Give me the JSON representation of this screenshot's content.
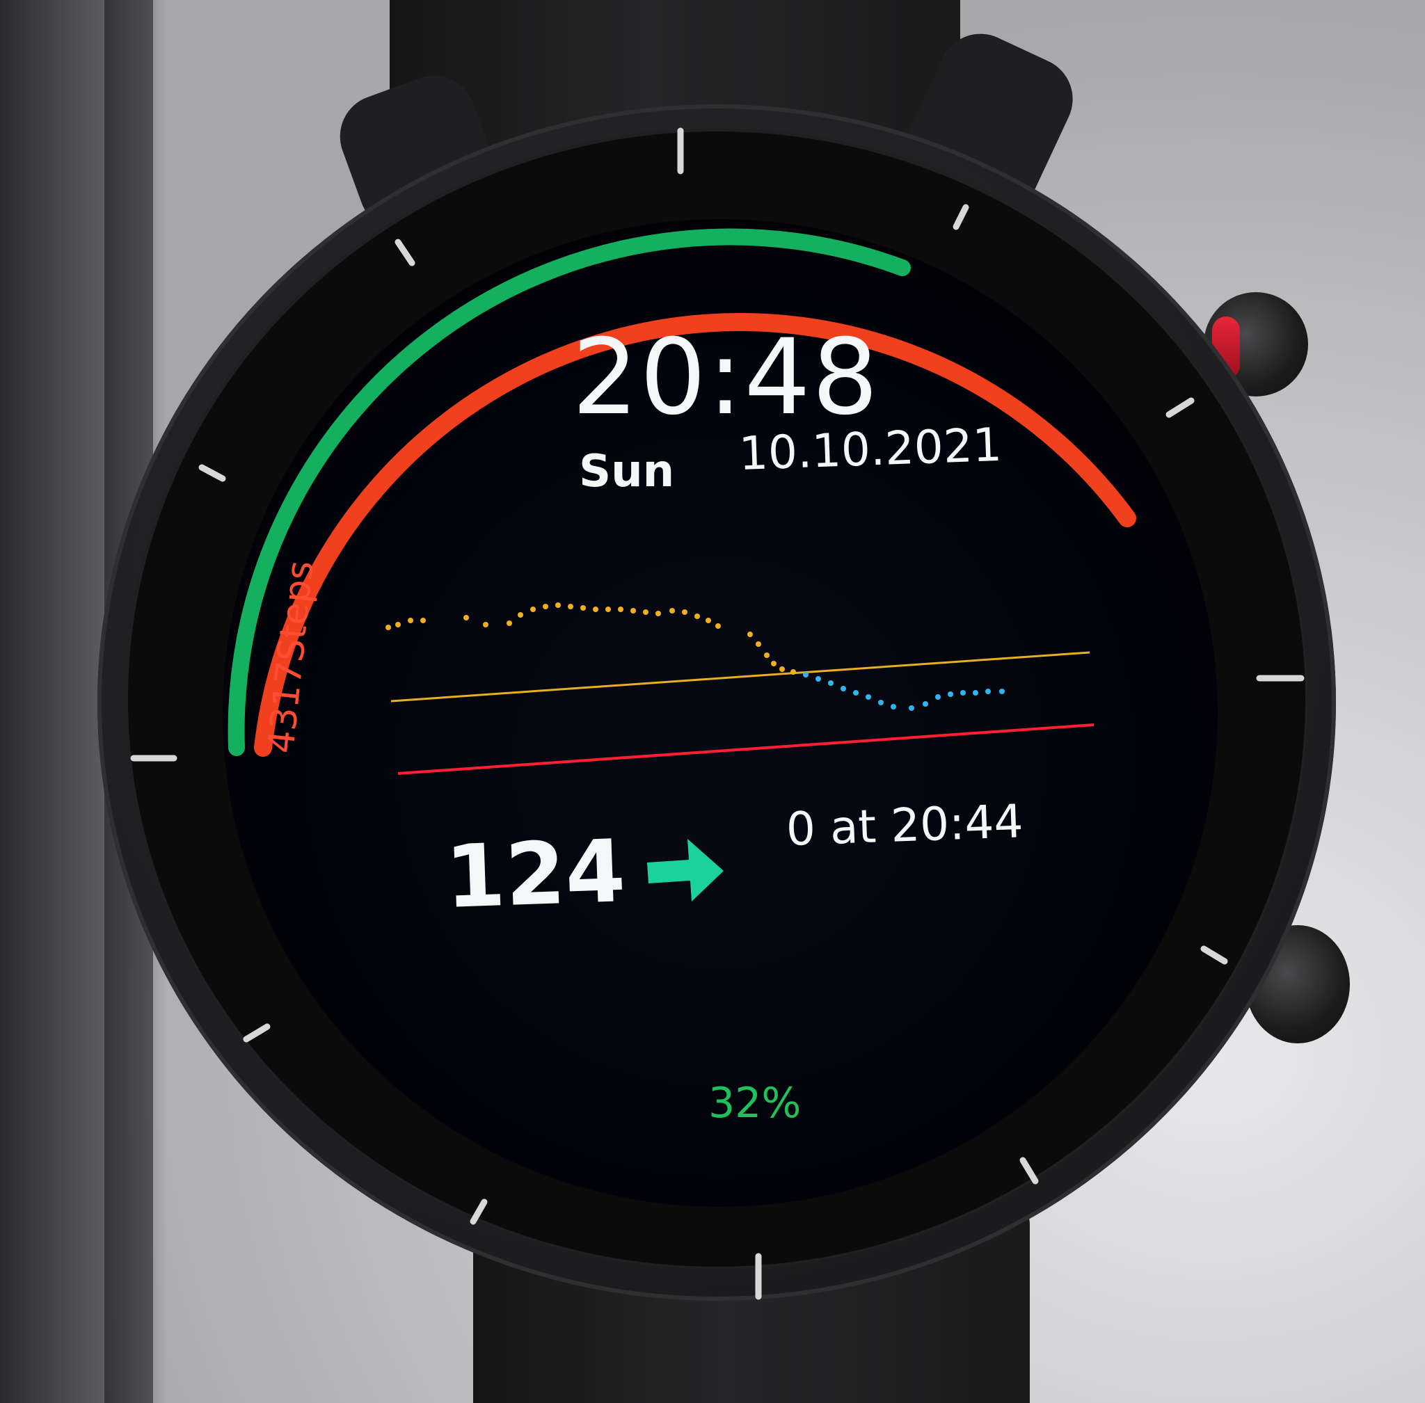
{
  "watchface": {
    "time": "20:48",
    "day_of_week": "Sun",
    "date": "10.10.2021",
    "steps_label": "4317Steps",
    "glucose_value": "124",
    "trend_icon": "arrow-right-icon",
    "last_reading": "0 at 20:44",
    "battery_percent": "32%"
  },
  "progress": {
    "steps_goal_fraction": 0.62,
    "battery_fraction": 0.32
  },
  "colors": {
    "steps_arc": "#14b060",
    "goal_arc": "#f0401e",
    "trend_arrow": "#1bd39a",
    "high_line": "#e8b020",
    "low_line": "#ff1e32",
    "high_points": "#f0b020",
    "low_points": "#2fb6f0",
    "battery_text": "#1fc25a"
  }
}
